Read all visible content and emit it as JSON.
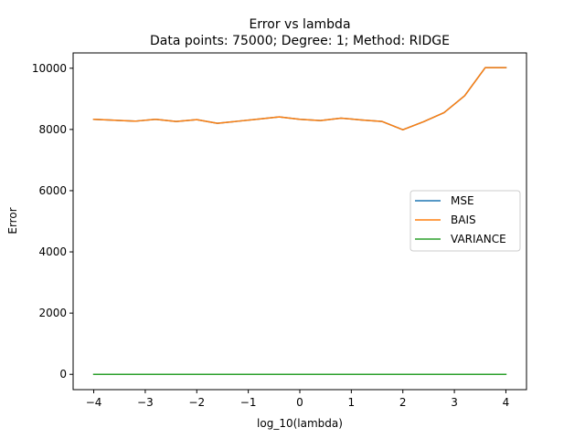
{
  "chart_data": {
    "type": "line",
    "title": "Error vs lambda",
    "subtitle": "Data points: 75000; Degree: 1; Method: RIDGE",
    "xlabel": "log_10(lambda)",
    "ylabel": "Error",
    "xlim": [
      -4.4,
      4.4
    ],
    "ylim": [
      -500,
      10500
    ],
    "xticks": [
      -4,
      -3,
      -2,
      -1,
      0,
      1,
      2,
      3,
      4
    ],
    "xtick_labels": [
      "−4",
      "−3",
      "−2",
      "−1",
      "0",
      "1",
      "2",
      "3",
      "4"
    ],
    "yticks": [
      0,
      2000,
      4000,
      6000,
      8000,
      10000
    ],
    "ytick_labels": [
      "0",
      "2000",
      "4000",
      "6000",
      "8000",
      "10000"
    ],
    "grid": false,
    "legend_position": "center-right",
    "x": [
      -4.0,
      -3.6,
      -3.2,
      -2.8,
      -2.4,
      -2.0,
      -1.6,
      -1.2,
      -0.8,
      -0.4,
      0.0,
      0.4,
      0.8,
      1.2,
      1.6,
      2.0,
      2.4,
      2.8,
      3.2,
      3.6,
      4.0
    ],
    "series": [
      {
        "name": "MSE",
        "color": "#1f77b4",
        "values": [
          8330,
          8300,
          8270,
          8330,
          8260,
          8320,
          8200,
          8270,
          8340,
          8410,
          8330,
          8290,
          8370,
          8310,
          8260,
          7990,
          8250,
          8550,
          9100,
          10020,
          10020
        ]
      },
      {
        "name": "BAIS",
        "color": "#ff7f0e",
        "values": [
          8330,
          8300,
          8270,
          8330,
          8260,
          8320,
          8200,
          8270,
          8340,
          8410,
          8330,
          8290,
          8370,
          8310,
          8260,
          7990,
          8250,
          8550,
          9100,
          10020,
          10020
        ]
      },
      {
        "name": "VARIANCE",
        "color": "#2ca02c",
        "values": [
          0,
          0,
          0,
          0,
          0,
          0,
          0,
          0,
          0,
          0,
          0,
          0,
          0,
          0,
          0,
          0,
          0,
          0,
          0,
          0,
          0
        ]
      }
    ]
  }
}
